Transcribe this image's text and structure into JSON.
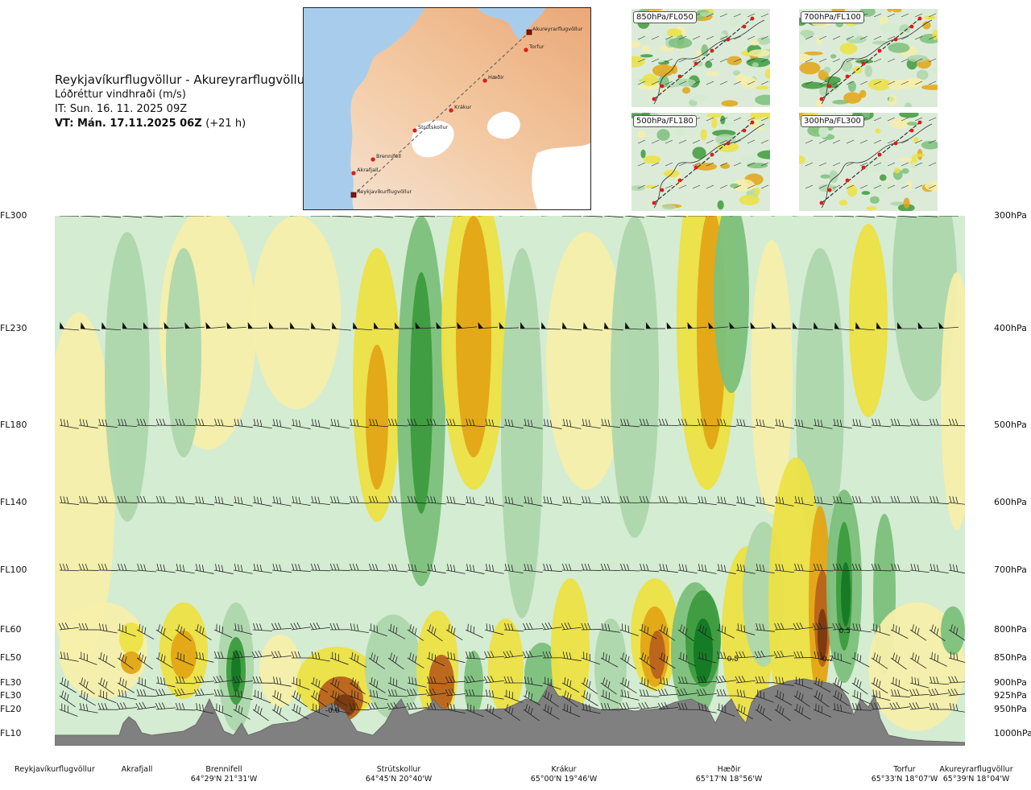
{
  "header": {
    "route": "Reykjavíkurflugvöllur - Akureyrarflugvöllur",
    "product": "Lóðréttur vindhraði (m/s)",
    "issue_time": "IT: Sun. 16. 11. 2025 09Z",
    "valid_time_bold": "VT: Mán. 17.11.2025 06Z",
    "valid_time_suffix": "(+21 h)"
  },
  "route_map": {
    "waypoints": [
      "Akureyrarflugvöllur",
      "Torfur",
      "Hæðir",
      "Krákur",
      "Strútskollur",
      "Brennifell",
      "Akrafjall",
      "Reykjavíkurflugvöllur"
    ]
  },
  "mini_maps": [
    {
      "label": "850hPa/FL050"
    },
    {
      "label": "700hPa/FL100"
    },
    {
      "label": "500hPa/FL180"
    },
    {
      "label": "300hPa/FL300"
    }
  ],
  "chart_data": {
    "type": "heatmap",
    "title": "Lóðréttur vindhraði (m/s)",
    "x_kind": "distance along route (fraction 0–1)",
    "levels": [
      {
        "fl": "FL300",
        "hpa": "300hPa"
      },
      {
        "fl": "FL230",
        "hpa": "400hPa"
      },
      {
        "fl": "FL180",
        "hpa": "500hPa"
      },
      {
        "fl": "FL140",
        "hpa": "600hPa"
      },
      {
        "fl": "FL100",
        "hpa": "700hPa"
      },
      {
        "fl": "FL60",
        "hpa": "800hPa"
      },
      {
        "fl": "FL50",
        "hpa": "850hPa"
      },
      {
        "fl": "FL30",
        "hpa": "900hPa"
      },
      {
        "fl": "FL30",
        "hpa": "925hPa"
      },
      {
        "fl": "FL20",
        "hpa": "950hPa"
      },
      {
        "fl": "FL10",
        "hpa": "1000hPa"
      }
    ],
    "locations": [
      {
        "name": "Reykjavíkurflugvöllur",
        "coord": "",
        "x": 0.0
      },
      {
        "name": "Akrafjall",
        "coord": "",
        "x": 0.09
      },
      {
        "name": "Brennifell",
        "coord": "64°29'N 21°31'W",
        "x": 0.19
      },
      {
        "name": "Strútskollur",
        "coord": "64°45'N 20°40'W",
        "x": 0.38
      },
      {
        "name": "Krákur",
        "coord": "65°00'N 19°46'W",
        "x": 0.57
      },
      {
        "name": "Hæðir",
        "coord": "65°17'N 18°56'W",
        "x": 0.76
      },
      {
        "name": "Torfur",
        "coord": "65°33'N 18°07'W",
        "x": 0.935
      },
      {
        "name": "Akureyrarflugvöllur",
        "coord": "65°39'N 18°04'W",
        "x": 1.0
      }
    ],
    "annotations": [
      {
        "text": "-0.6",
        "x": 0.305,
        "level": "FL20"
      },
      {
        "text": "0.5",
        "x": 0.745,
        "level": "FL50"
      },
      {
        "text": "-0.7",
        "x": 0.848,
        "level": "FL50"
      },
      {
        "text": "0.5",
        "x": 0.868,
        "level": "FL60"
      }
    ],
    "colors": {
      "strong_down": "#7a3a10",
      "down_3": "#b9621c",
      "down_2": "#e3a516",
      "down_1": "#ece244",
      "weak_down": "#f6efaa",
      "neutral": "#fffde8",
      "weak_up": "#d4ecd2",
      "up_1": "#aed7ad",
      "up_2": "#7cc07c",
      "up_3": "#3d9b3d",
      "strong_up": "#137a24",
      "terrain": "#808080"
    }
  }
}
